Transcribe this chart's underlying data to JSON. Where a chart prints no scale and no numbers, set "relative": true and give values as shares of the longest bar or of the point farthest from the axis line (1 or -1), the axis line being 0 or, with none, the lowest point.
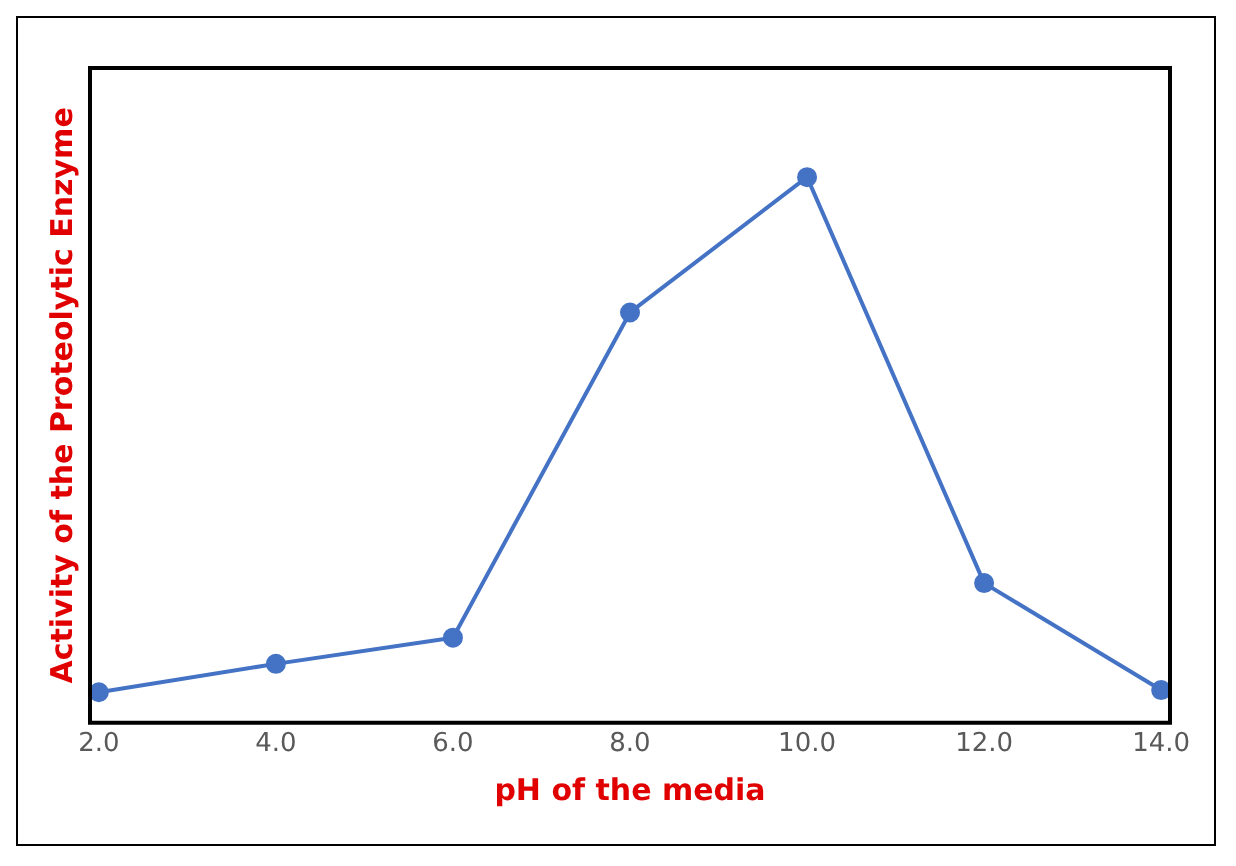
{
  "chart_data": {
    "type": "line",
    "xlabel": "pH of the media",
    "ylabel": "Activity of the Proteolytic Enzyme",
    "x": [
      2,
      4,
      6,
      8,
      10,
      12,
      14
    ],
    "series": [
      {
        "color": "#4472c4",
        "values": [
          0.056,
          0.108,
          0.156,
          0.752,
          1,
          0.256,
          0.06
        ]
      }
    ],
    "relative": true,
    "marker": "circle",
    "line_style": "solid",
    "grid": false,
    "legend": false,
    "xlim": [
      1.9,
      14.1
    ],
    "xticks": [
      {
        "value": 2,
        "label": "2.0"
      },
      {
        "value": 4,
        "label": "4.0"
      },
      {
        "value": 6,
        "label": "6.0"
      },
      {
        "value": 8,
        "label": "8.0"
      },
      {
        "value": 10,
        "label": "10.0"
      },
      {
        "value": 12,
        "label": "12.0"
      },
      {
        "value": 14,
        "label": "14.0"
      }
    ]
  }
}
